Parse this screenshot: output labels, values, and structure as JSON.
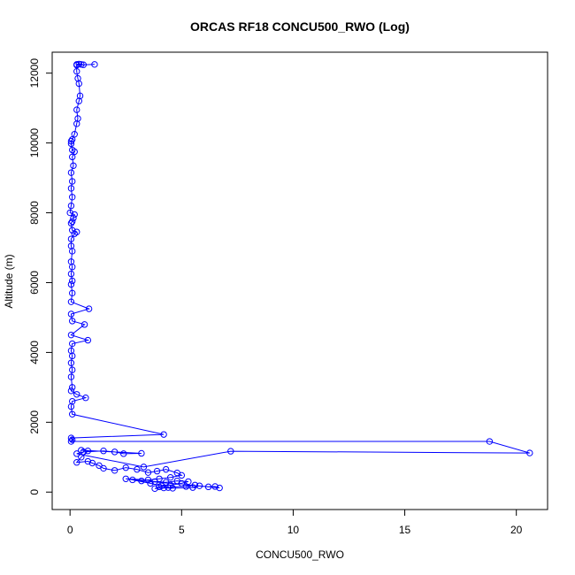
{
  "chart_data": {
    "type": "scatter",
    "title": "ORCAS RF18 CONCU500_RWO (Log)",
    "xlabel": "CONCU500_RWO",
    "ylabel": "Altitude (m)",
    "xlim": [
      -0.8,
      21.4
    ],
    "ylim": [
      -500,
      12600
    ],
    "x_ticks": [
      0,
      5,
      10,
      15,
      20
    ],
    "y_ticks": [
      0,
      2000,
      4000,
      6000,
      8000,
      10000,
      12000
    ],
    "grid": false,
    "legend": "none",
    "series": [
      {
        "color": "#0000ff",
        "marker": "open-circle",
        "line": true,
        "points": [
          [
            0.3,
            12250
          ],
          [
            0.4,
            12260
          ],
          [
            0.5,
            12250
          ],
          [
            0.6,
            12240
          ],
          [
            1.1,
            12250
          ],
          [
            0.3,
            12230
          ],
          [
            0.3,
            12050
          ],
          [
            0.35,
            11850
          ],
          [
            0.4,
            11700
          ],
          [
            0.45,
            11350
          ],
          [
            0.4,
            11200
          ],
          [
            0.3,
            10950
          ],
          [
            0.35,
            10700
          ],
          [
            0.3,
            10550
          ],
          [
            0.2,
            10250
          ],
          [
            0.1,
            10100
          ],
          [
            0.05,
            10050
          ],
          [
            0.05,
            9980
          ],
          [
            0.1,
            9800
          ],
          [
            0.2,
            9750
          ],
          [
            0.1,
            9600
          ],
          [
            0.15,
            9350
          ],
          [
            0.05,
            9150
          ],
          [
            0.1,
            8900
          ],
          [
            0.05,
            8700
          ],
          [
            0.1,
            8450
          ],
          [
            0.05,
            8200
          ],
          [
            0.0,
            8000
          ],
          [
            0.2,
            7950
          ],
          [
            0.15,
            7850
          ],
          [
            0.1,
            7750
          ],
          [
            0.05,
            7700
          ],
          [
            0.1,
            7500
          ],
          [
            0.3,
            7450
          ],
          [
            0.2,
            7400
          ],
          [
            0.05,
            7250
          ],
          [
            0.05,
            7050
          ],
          [
            0.1,
            6900
          ],
          [
            0.05,
            6600
          ],
          [
            0.1,
            6450
          ],
          [
            0.05,
            6250
          ],
          [
            0.1,
            6050
          ],
          [
            0.05,
            5950
          ],
          [
            0.1,
            5700
          ],
          [
            0.05,
            5450
          ],
          [
            0.85,
            5250
          ],
          [
            0.05,
            5100
          ],
          [
            0.1,
            4900
          ],
          [
            0.65,
            4800
          ],
          [
            0.05,
            4500
          ],
          [
            0.8,
            4350
          ],
          [
            0.1,
            4250
          ],
          [
            0.05,
            4050
          ],
          [
            0.1,
            3900
          ],
          [
            0.05,
            3700
          ],
          [
            0.1,
            3500
          ],
          [
            0.05,
            3300
          ],
          [
            0.1,
            3000
          ],
          [
            0.05,
            2900
          ],
          [
            0.3,
            2800
          ],
          [
            0.7,
            2700
          ],
          [
            0.1,
            2600
          ],
          [
            0.05,
            2450
          ],
          [
            0.1,
            2230
          ],
          [
            4.2,
            1650
          ],
          [
            0.05,
            1550
          ],
          [
            0.1,
            1500
          ],
          [
            0.05,
            1450
          ],
          [
            18.8,
            1450
          ],
          [
            20.6,
            1120
          ],
          [
            7.2,
            1170
          ],
          [
            3.3,
            720
          ],
          [
            0.3,
            1100
          ],
          [
            0.6,
            1150
          ],
          [
            1.5,
            1180
          ],
          [
            2.0,
            1150
          ],
          [
            2.4,
            1100
          ],
          [
            3.2,
            1110
          ],
          [
            0.5,
            1200
          ],
          [
            0.8,
            1180
          ],
          [
            0.5,
            1000
          ],
          [
            0.3,
            850
          ],
          [
            0.8,
            880
          ],
          [
            1.0,
            830
          ],
          [
            1.3,
            760
          ],
          [
            1.5,
            680
          ],
          [
            2.0,
            620
          ],
          [
            2.5,
            700
          ],
          [
            3.0,
            650
          ],
          [
            3.5,
            560
          ],
          [
            3.9,
            600
          ],
          [
            4.3,
            650
          ],
          [
            4.8,
            550
          ],
          [
            5.0,
            480
          ],
          [
            4.5,
            420
          ],
          [
            4.0,
            380
          ],
          [
            3.5,
            350
          ],
          [
            2.5,
            380
          ],
          [
            3.2,
            320
          ],
          [
            3.8,
            300
          ],
          [
            4.3,
            280
          ],
          [
            4.8,
            320
          ],
          [
            5.3,
            300
          ],
          [
            5.0,
            250
          ],
          [
            4.5,
            200
          ],
          [
            4.0,
            150
          ],
          [
            3.8,
            100
          ],
          [
            4.2,
            120
          ],
          [
            4.6,
            110
          ],
          [
            5.5,
            130
          ],
          [
            5.8,
            180
          ],
          [
            6.2,
            150
          ],
          [
            6.5,
            160
          ],
          [
            6.7,
            120
          ],
          [
            2.8,
            350
          ],
          [
            3.6,
            250
          ],
          [
            4.1,
            180
          ],
          [
            4.4,
            130
          ],
          [
            5.6,
            200
          ],
          [
            5.2,
            160
          ]
        ]
      }
    ]
  }
}
